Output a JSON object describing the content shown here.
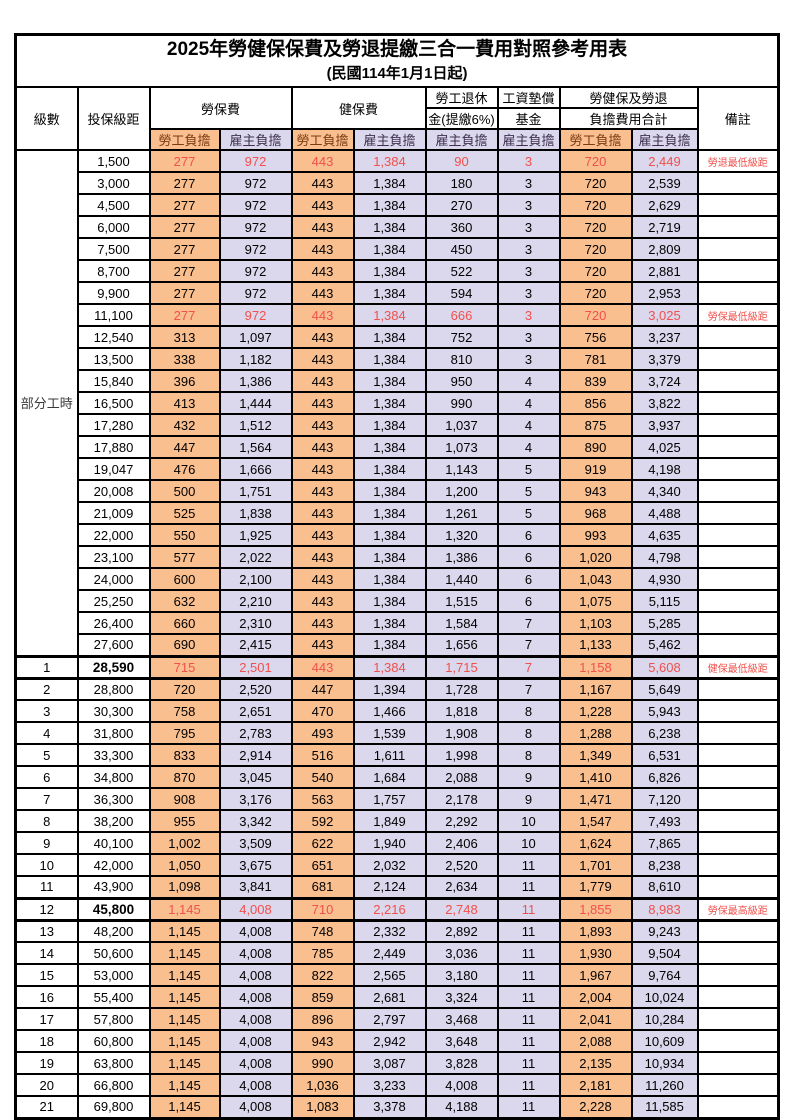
{
  "title": "2025年勞健保保費及勞退提繳三合一費用對照參考用表",
  "subtitle": "(民國114年1月1日起)",
  "header": {
    "level": "級數",
    "salary_bracket": "投保級距",
    "labor_insurance": "勞保費",
    "health_insurance": "健保費",
    "pension_line1": "勞工退休",
    "pension_line2": "金(提繳6%)",
    "wage_fund_line1": "工資墊償",
    "wage_fund_line2": "基金",
    "total_line1": "勞健保及勞退",
    "total_line2": "負擔費用合計",
    "remarks": "備註",
    "employee_burden": "勞工負擔",
    "employer_burden": "雇主負擔"
  },
  "part_time": {
    "label": "部分工時",
    "rowspan": 23
  },
  "colors": {
    "employee_col_bg": "#FABF8F",
    "employer_col_bg": "#DBD7EC",
    "highlight_red": "#F1504C",
    "border": "#000000"
  },
  "rows": [
    {
      "level": "",
      "salary": "1,500",
      "values": [
        "277",
        "972",
        "443",
        "1,384",
        "90",
        "3",
        "720",
        "2,449"
      ],
      "remark": "勞退最低級距",
      "red": true,
      "bold_salary": false,
      "thick": false
    },
    {
      "level": "",
      "salary": "3,000",
      "values": [
        "277",
        "972",
        "443",
        "1,384",
        "180",
        "3",
        "720",
        "2,539"
      ],
      "remark": "",
      "red": false,
      "bold_salary": false,
      "thick": false
    },
    {
      "level": "",
      "salary": "4,500",
      "values": [
        "277",
        "972",
        "443",
        "1,384",
        "270",
        "3",
        "720",
        "2,629"
      ],
      "remark": "",
      "red": false,
      "bold_salary": false,
      "thick": false
    },
    {
      "level": "",
      "salary": "6,000",
      "values": [
        "277",
        "972",
        "443",
        "1,384",
        "360",
        "3",
        "720",
        "2,719"
      ],
      "remark": "",
      "red": false,
      "bold_salary": false,
      "thick": false
    },
    {
      "level": "",
      "salary": "7,500",
      "values": [
        "277",
        "972",
        "443",
        "1,384",
        "450",
        "3",
        "720",
        "2,809"
      ],
      "remark": "",
      "red": false,
      "bold_salary": false,
      "thick": false
    },
    {
      "level": "",
      "salary": "8,700",
      "values": [
        "277",
        "972",
        "443",
        "1,384",
        "522",
        "3",
        "720",
        "2,881"
      ],
      "remark": "",
      "red": false,
      "bold_salary": false,
      "thick": false
    },
    {
      "level": "",
      "salary": "9,900",
      "values": [
        "277",
        "972",
        "443",
        "1,384",
        "594",
        "3",
        "720",
        "2,953"
      ],
      "remark": "",
      "red": false,
      "bold_salary": false,
      "thick": false
    },
    {
      "level": "",
      "salary": "11,100",
      "values": [
        "277",
        "972",
        "443",
        "1,384",
        "666",
        "3",
        "720",
        "3,025"
      ],
      "remark": "勞保最低級距",
      "red": true,
      "bold_salary": false,
      "thick": false
    },
    {
      "level": "",
      "salary": "12,540",
      "values": [
        "313",
        "1,097",
        "443",
        "1,384",
        "752",
        "3",
        "756",
        "3,237"
      ],
      "remark": "",
      "red": false,
      "bold_salary": false,
      "thick": false
    },
    {
      "level": "",
      "salary": "13,500",
      "values": [
        "338",
        "1,182",
        "443",
        "1,384",
        "810",
        "3",
        "781",
        "3,379"
      ],
      "remark": "",
      "red": false,
      "bold_salary": false,
      "thick": false
    },
    {
      "level": "",
      "salary": "15,840",
      "values": [
        "396",
        "1,386",
        "443",
        "1,384",
        "950",
        "4",
        "839",
        "3,724"
      ],
      "remark": "",
      "red": false,
      "bold_salary": false,
      "thick": false
    },
    {
      "level": "",
      "salary": "16,500",
      "values": [
        "413",
        "1,444",
        "443",
        "1,384",
        "990",
        "4",
        "856",
        "3,822"
      ],
      "remark": "",
      "red": false,
      "bold_salary": false,
      "thick": false
    },
    {
      "level": "",
      "salary": "17,280",
      "values": [
        "432",
        "1,512",
        "443",
        "1,384",
        "1,037",
        "4",
        "875",
        "3,937"
      ],
      "remark": "",
      "red": false,
      "bold_salary": false,
      "thick": false
    },
    {
      "level": "",
      "salary": "17,880",
      "values": [
        "447",
        "1,564",
        "443",
        "1,384",
        "1,073",
        "4",
        "890",
        "4,025"
      ],
      "remark": "",
      "red": false,
      "bold_salary": false,
      "thick": false
    },
    {
      "level": "",
      "salary": "19,047",
      "values": [
        "476",
        "1,666",
        "443",
        "1,384",
        "1,143",
        "5",
        "919",
        "4,198"
      ],
      "remark": "",
      "red": false,
      "bold_salary": false,
      "thick": false
    },
    {
      "level": "",
      "salary": "20,008",
      "values": [
        "500",
        "1,751",
        "443",
        "1,384",
        "1,200",
        "5",
        "943",
        "4,340"
      ],
      "remark": "",
      "red": false,
      "bold_salary": false,
      "thick": false
    },
    {
      "level": "",
      "salary": "21,009",
      "values": [
        "525",
        "1,838",
        "443",
        "1,384",
        "1,261",
        "5",
        "968",
        "4,488"
      ],
      "remark": "",
      "red": false,
      "bold_salary": false,
      "thick": false
    },
    {
      "level": "",
      "salary": "22,000",
      "values": [
        "550",
        "1,925",
        "443",
        "1,384",
        "1,320",
        "6",
        "993",
        "4,635"
      ],
      "remark": "",
      "red": false,
      "bold_salary": false,
      "thick": false
    },
    {
      "level": "",
      "salary": "23,100",
      "values": [
        "577",
        "2,022",
        "443",
        "1,384",
        "1,386",
        "6",
        "1,020",
        "4,798"
      ],
      "remark": "",
      "red": false,
      "bold_salary": false,
      "thick": false
    },
    {
      "level": "",
      "salary": "24,000",
      "values": [
        "600",
        "2,100",
        "443",
        "1,384",
        "1,440",
        "6",
        "1,043",
        "4,930"
      ],
      "remark": "",
      "red": false,
      "bold_salary": false,
      "thick": false
    },
    {
      "level": "",
      "salary": "25,250",
      "values": [
        "632",
        "2,210",
        "443",
        "1,384",
        "1,515",
        "6",
        "1,075",
        "5,115"
      ],
      "remark": "",
      "red": false,
      "bold_salary": false,
      "thick": false
    },
    {
      "level": "",
      "salary": "26,400",
      "values": [
        "660",
        "2,310",
        "443",
        "1,384",
        "1,584",
        "7",
        "1,103",
        "5,285"
      ],
      "remark": "",
      "red": false,
      "bold_salary": false,
      "thick": false
    },
    {
      "level": "",
      "salary": "27,600",
      "values": [
        "690",
        "2,415",
        "443",
        "1,384",
        "1,656",
        "7",
        "1,133",
        "5,462"
      ],
      "remark": "",
      "red": false,
      "bold_salary": false,
      "thick": false
    },
    {
      "level": "1",
      "salary": "28,590",
      "values": [
        "715",
        "2,501",
        "443",
        "1,384",
        "1,715",
        "7",
        "1,158",
        "5,608"
      ],
      "remark": "健保最低級距",
      "red": true,
      "bold_salary": true,
      "thick": true
    },
    {
      "level": "2",
      "salary": "28,800",
      "values": [
        "720",
        "2,520",
        "447",
        "1,394",
        "1,728",
        "7",
        "1,167",
        "5,649"
      ],
      "remark": "",
      "red": false,
      "bold_salary": false,
      "thick": false
    },
    {
      "level": "3",
      "salary": "30,300",
      "values": [
        "758",
        "2,651",
        "470",
        "1,466",
        "1,818",
        "8",
        "1,228",
        "5,943"
      ],
      "remark": "",
      "red": false,
      "bold_salary": false,
      "thick": false
    },
    {
      "level": "4",
      "salary": "31,800",
      "values": [
        "795",
        "2,783",
        "493",
        "1,539",
        "1,908",
        "8",
        "1,288",
        "6,238"
      ],
      "remark": "",
      "red": false,
      "bold_salary": false,
      "thick": false
    },
    {
      "level": "5",
      "salary": "33,300",
      "values": [
        "833",
        "2,914",
        "516",
        "1,611",
        "1,998",
        "8",
        "1,349",
        "6,531"
      ],
      "remark": "",
      "red": false,
      "bold_salary": false,
      "thick": false
    },
    {
      "level": "6",
      "salary": "34,800",
      "values": [
        "870",
        "3,045",
        "540",
        "1,684",
        "2,088",
        "9",
        "1,410",
        "6,826"
      ],
      "remark": "",
      "red": false,
      "bold_salary": false,
      "thick": false
    },
    {
      "level": "7",
      "salary": "36,300",
      "values": [
        "908",
        "3,176",
        "563",
        "1,757",
        "2,178",
        "9",
        "1,471",
        "7,120"
      ],
      "remark": "",
      "red": false,
      "bold_salary": false,
      "thick": false
    },
    {
      "level": "8",
      "salary": "38,200",
      "values": [
        "955",
        "3,342",
        "592",
        "1,849",
        "2,292",
        "10",
        "1,547",
        "7,493"
      ],
      "remark": "",
      "red": false,
      "bold_salary": false,
      "thick": false
    },
    {
      "level": "9",
      "salary": "40,100",
      "values": [
        "1,002",
        "3,509",
        "622",
        "1,940",
        "2,406",
        "10",
        "1,624",
        "7,865"
      ],
      "remark": "",
      "red": false,
      "bold_salary": false,
      "thick": false
    },
    {
      "level": "10",
      "salary": "42,000",
      "values": [
        "1,050",
        "3,675",
        "651",
        "2,032",
        "2,520",
        "11",
        "1,701",
        "8,238"
      ],
      "remark": "",
      "red": false,
      "bold_salary": false,
      "thick": false
    },
    {
      "level": "11",
      "salary": "43,900",
      "values": [
        "1,098",
        "3,841",
        "681",
        "2,124",
        "2,634",
        "11",
        "1,779",
        "8,610"
      ],
      "remark": "",
      "red": false,
      "bold_salary": false,
      "thick": false
    },
    {
      "level": "12",
      "salary": "45,800",
      "values": [
        "1,145",
        "4,008",
        "710",
        "2,216",
        "2,748",
        "11",
        "1,855",
        "8,983"
      ],
      "remark": "勞保最高級距",
      "red": true,
      "bold_salary": true,
      "thick": true
    },
    {
      "level": "13",
      "salary": "48,200",
      "values": [
        "1,145",
        "4,008",
        "748",
        "2,332",
        "2,892",
        "11",
        "1,893",
        "9,243"
      ],
      "remark": "",
      "red": false,
      "bold_salary": false,
      "thick": false
    },
    {
      "level": "14",
      "salary": "50,600",
      "values": [
        "1,145",
        "4,008",
        "785",
        "2,449",
        "3,036",
        "11",
        "1,930",
        "9,504"
      ],
      "remark": "",
      "red": false,
      "bold_salary": false,
      "thick": false
    },
    {
      "level": "15",
      "salary": "53,000",
      "values": [
        "1,145",
        "4,008",
        "822",
        "2,565",
        "3,180",
        "11",
        "1,967",
        "9,764"
      ],
      "remark": "",
      "red": false,
      "bold_salary": false,
      "thick": false
    },
    {
      "level": "16",
      "salary": "55,400",
      "values": [
        "1,145",
        "4,008",
        "859",
        "2,681",
        "3,324",
        "11",
        "2,004",
        "10,024"
      ],
      "remark": "",
      "red": false,
      "bold_salary": false,
      "thick": false
    },
    {
      "level": "17",
      "salary": "57,800",
      "values": [
        "1,145",
        "4,008",
        "896",
        "2,797",
        "3,468",
        "11",
        "2,041",
        "10,284"
      ],
      "remark": "",
      "red": false,
      "bold_salary": false,
      "thick": false
    },
    {
      "level": "18",
      "salary": "60,800",
      "values": [
        "1,145",
        "4,008",
        "943",
        "2,942",
        "3,648",
        "11",
        "2,088",
        "10,609"
      ],
      "remark": "",
      "red": false,
      "bold_salary": false,
      "thick": false
    },
    {
      "level": "19",
      "salary": "63,800",
      "values": [
        "1,145",
        "4,008",
        "990",
        "3,087",
        "3,828",
        "11",
        "2,135",
        "10,934"
      ],
      "remark": "",
      "red": false,
      "bold_salary": false,
      "thick": false
    },
    {
      "level": "20",
      "salary": "66,800",
      "values": [
        "1,145",
        "4,008",
        "1,036",
        "3,233",
        "4,008",
        "11",
        "2,181",
        "11,260"
      ],
      "remark": "",
      "red": false,
      "bold_salary": false,
      "thick": false
    },
    {
      "level": "21",
      "salary": "69,800",
      "values": [
        "1,145",
        "4,008",
        "1,083",
        "3,378",
        "4,188",
        "11",
        "2,228",
        "11,585"
      ],
      "remark": "",
      "red": false,
      "bold_salary": false,
      "thick": false
    }
  ]
}
